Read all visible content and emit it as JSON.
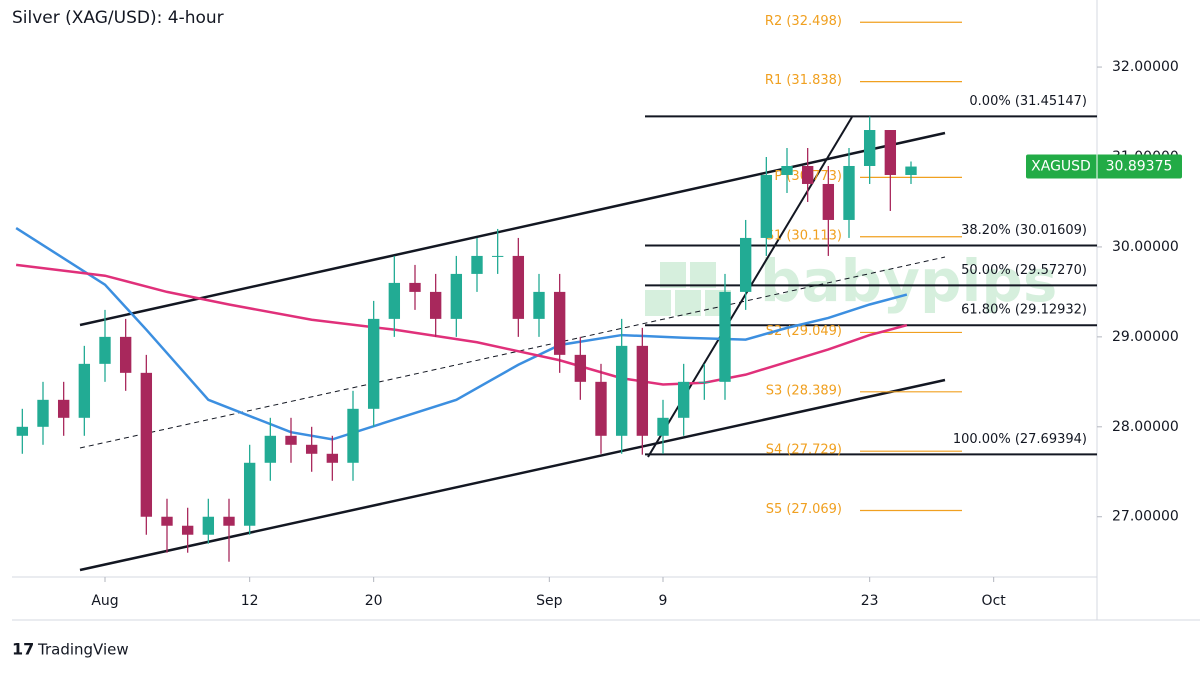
{
  "chart_data": {
    "type": "candlestick",
    "title": "Silver (XAG/USD): 4-hour",
    "brand": "TradingView",
    "watermark": "babypips",
    "x": [
      -4,
      -3,
      -2,
      -1,
      0,
      1,
      2,
      3,
      4,
      5,
      6,
      7,
      8,
      9,
      10,
      11,
      12,
      13,
      14,
      15,
      16,
      17,
      18,
      19,
      20,
      21,
      22,
      23,
      24,
      25,
      26,
      27,
      28,
      29,
      30,
      31,
      32,
      33,
      34,
      35,
      36,
      37,
      38,
      39
    ],
    "open": [
      27.9,
      28.0,
      28.3,
      28.1,
      28.7,
      29.0,
      28.6,
      27.0,
      26.9,
      26.8,
      27.0,
      26.9,
      27.6,
      27.9,
      27.8,
      27.7,
      27.6,
      28.2,
      29.2,
      29.6,
      29.5,
      29.2,
      29.7,
      29.9,
      29.9,
      29.2,
      29.5,
      28.8,
      28.5,
      27.9,
      28.9,
      27.9,
      28.1,
      28.5,
      28.5,
      29.5,
      30.1,
      30.8,
      30.9,
      30.7,
      30.3,
      30.9,
      31.3,
      30.8
    ],
    "high": [
      28.2,
      28.5,
      28.5,
      28.9,
      29.3,
      29.2,
      28.8,
      27.2,
      27.1,
      27.2,
      27.2,
      27.8,
      28.1,
      28.1,
      28.0,
      27.9,
      28.4,
      29.4,
      29.9,
      29.8,
      29.7,
      29.9,
      30.1,
      30.2,
      30.1,
      29.7,
      29.7,
      29.0,
      28.7,
      29.2,
      29.1,
      28.3,
      28.7,
      28.7,
      29.7,
      30.3,
      31.0,
      31.1,
      31.1,
      30.9,
      31.1,
      31.45,
      31.3,
      30.95
    ],
    "low": [
      27.7,
      27.8,
      27.9,
      27.9,
      28.5,
      28.4,
      26.8,
      26.6,
      26.6,
      26.7,
      26.5,
      26.8,
      27.4,
      27.6,
      27.5,
      27.4,
      27.4,
      28.0,
      29.0,
      29.3,
      29.0,
      29.0,
      29.5,
      29.7,
      29.0,
      29.0,
      28.6,
      28.3,
      27.7,
      27.7,
      27.69,
      27.7,
      27.9,
      28.3,
      28.3,
      29.3,
      29.9,
      30.6,
      30.5,
      29.9,
      30.1,
      30.7,
      30.4,
      30.7
    ],
    "close": [
      28.0,
      28.3,
      28.1,
      28.7,
      29.0,
      28.6,
      27.0,
      26.9,
      26.8,
      27.0,
      26.9,
      27.6,
      27.9,
      27.8,
      27.7,
      27.6,
      28.2,
      29.2,
      29.6,
      29.5,
      29.2,
      29.7,
      29.9,
      29.9,
      29.2,
      29.5,
      28.8,
      28.5,
      27.9,
      28.9,
      27.9,
      28.1,
      28.5,
      28.5,
      29.5,
      30.1,
      30.8,
      30.9,
      30.7,
      30.3,
      30.9,
      31.3,
      30.8,
      30.89375
    ],
    "up_color": "#22ab94",
    "down_color": "#a8285c",
    "overlays": [
      {
        "color": "#3c8fe0",
        "x": [
          -4.3,
          0,
          2,
          5,
          9,
          11,
          14,
          17,
          20,
          22,
          25,
          28,
          31,
          33,
          35,
          37,
          38.8
        ],
        "values": [
          30.21,
          29.58,
          29.08,
          28.3,
          27.94,
          27.86,
          28.08,
          28.3,
          28.69,
          28.91,
          29.02,
          28.99,
          28.97,
          29.1,
          29.21,
          29.36,
          29.47
        ]
      },
      {
        "color": "#e0307a",
        "x": [
          -4.3,
          0,
          3,
          6,
          10,
          14,
          18,
          22,
          25,
          27,
          29,
          31,
          33,
          35,
          37,
          38.8
        ],
        "values": [
          29.8,
          29.68,
          29.5,
          29.36,
          29.19,
          29.08,
          28.94,
          28.74,
          28.54,
          28.47,
          28.49,
          28.58,
          28.72,
          28.86,
          29.02,
          29.13
        ]
      }
    ],
    "fib_levels": [
      {
        "label": "0.00% (31.45147)",
        "value": 31.45147
      },
      {
        "label": "38.20% (30.01609)",
        "value": 30.01609
      },
      {
        "label": "50.00% (29.57270)",
        "value": 29.5727
      },
      {
        "label": "61.80% (29.12932)",
        "value": 29.12932
      },
      {
        "label": "100.00% (27.69394)",
        "value": 27.69394
      }
    ],
    "pivots": [
      {
        "label": "R2 (32.498)",
        "value": 32.498
      },
      {
        "label": "R1 (31.838)",
        "value": 31.838
      },
      {
        "label": "P (30.773)",
        "value": 30.773
      },
      {
        "label": "S1 (30.113)",
        "value": 30.113
      },
      {
        "label": "S2 (29.049)",
        "value": 29.049
      },
      {
        "label": "S3 (28.389)",
        "value": 28.389
      },
      {
        "label": "S4 (27.729)",
        "value": 27.729
      },
      {
        "label": "S5 (27.069)",
        "value": 27.069
      }
    ],
    "last_price": {
      "symbol": "XAGUSD",
      "label": "30.89375",
      "value": 30.89375,
      "color": "#22ab46"
    },
    "xlim": [
      -4.5,
      48
    ],
    "xticks": [
      {
        "value": 0,
        "label": "Aug"
      },
      {
        "value": 7,
        "label": "12"
      },
      {
        "value": 13,
        "label": "20"
      },
      {
        "value": 21.5,
        "label": "Sep"
      },
      {
        "value": 27,
        "label": "9"
      },
      {
        "value": 37,
        "label": "23"
      },
      {
        "value": 43,
        "label": "Oct"
      }
    ],
    "ylim": [
      26.33,
      32.69
    ],
    "yticks": [
      {
        "value": 27,
        "label": "27.00000"
      },
      {
        "value": 28,
        "label": "28.00000"
      },
      {
        "value": 29,
        "label": "29.00000"
      },
      {
        "value": 30,
        "label": "30.00000"
      },
      {
        "value": 31,
        "label": "31.00000"
      },
      {
        "value": 32,
        "label": "32.00000"
      }
    ]
  }
}
